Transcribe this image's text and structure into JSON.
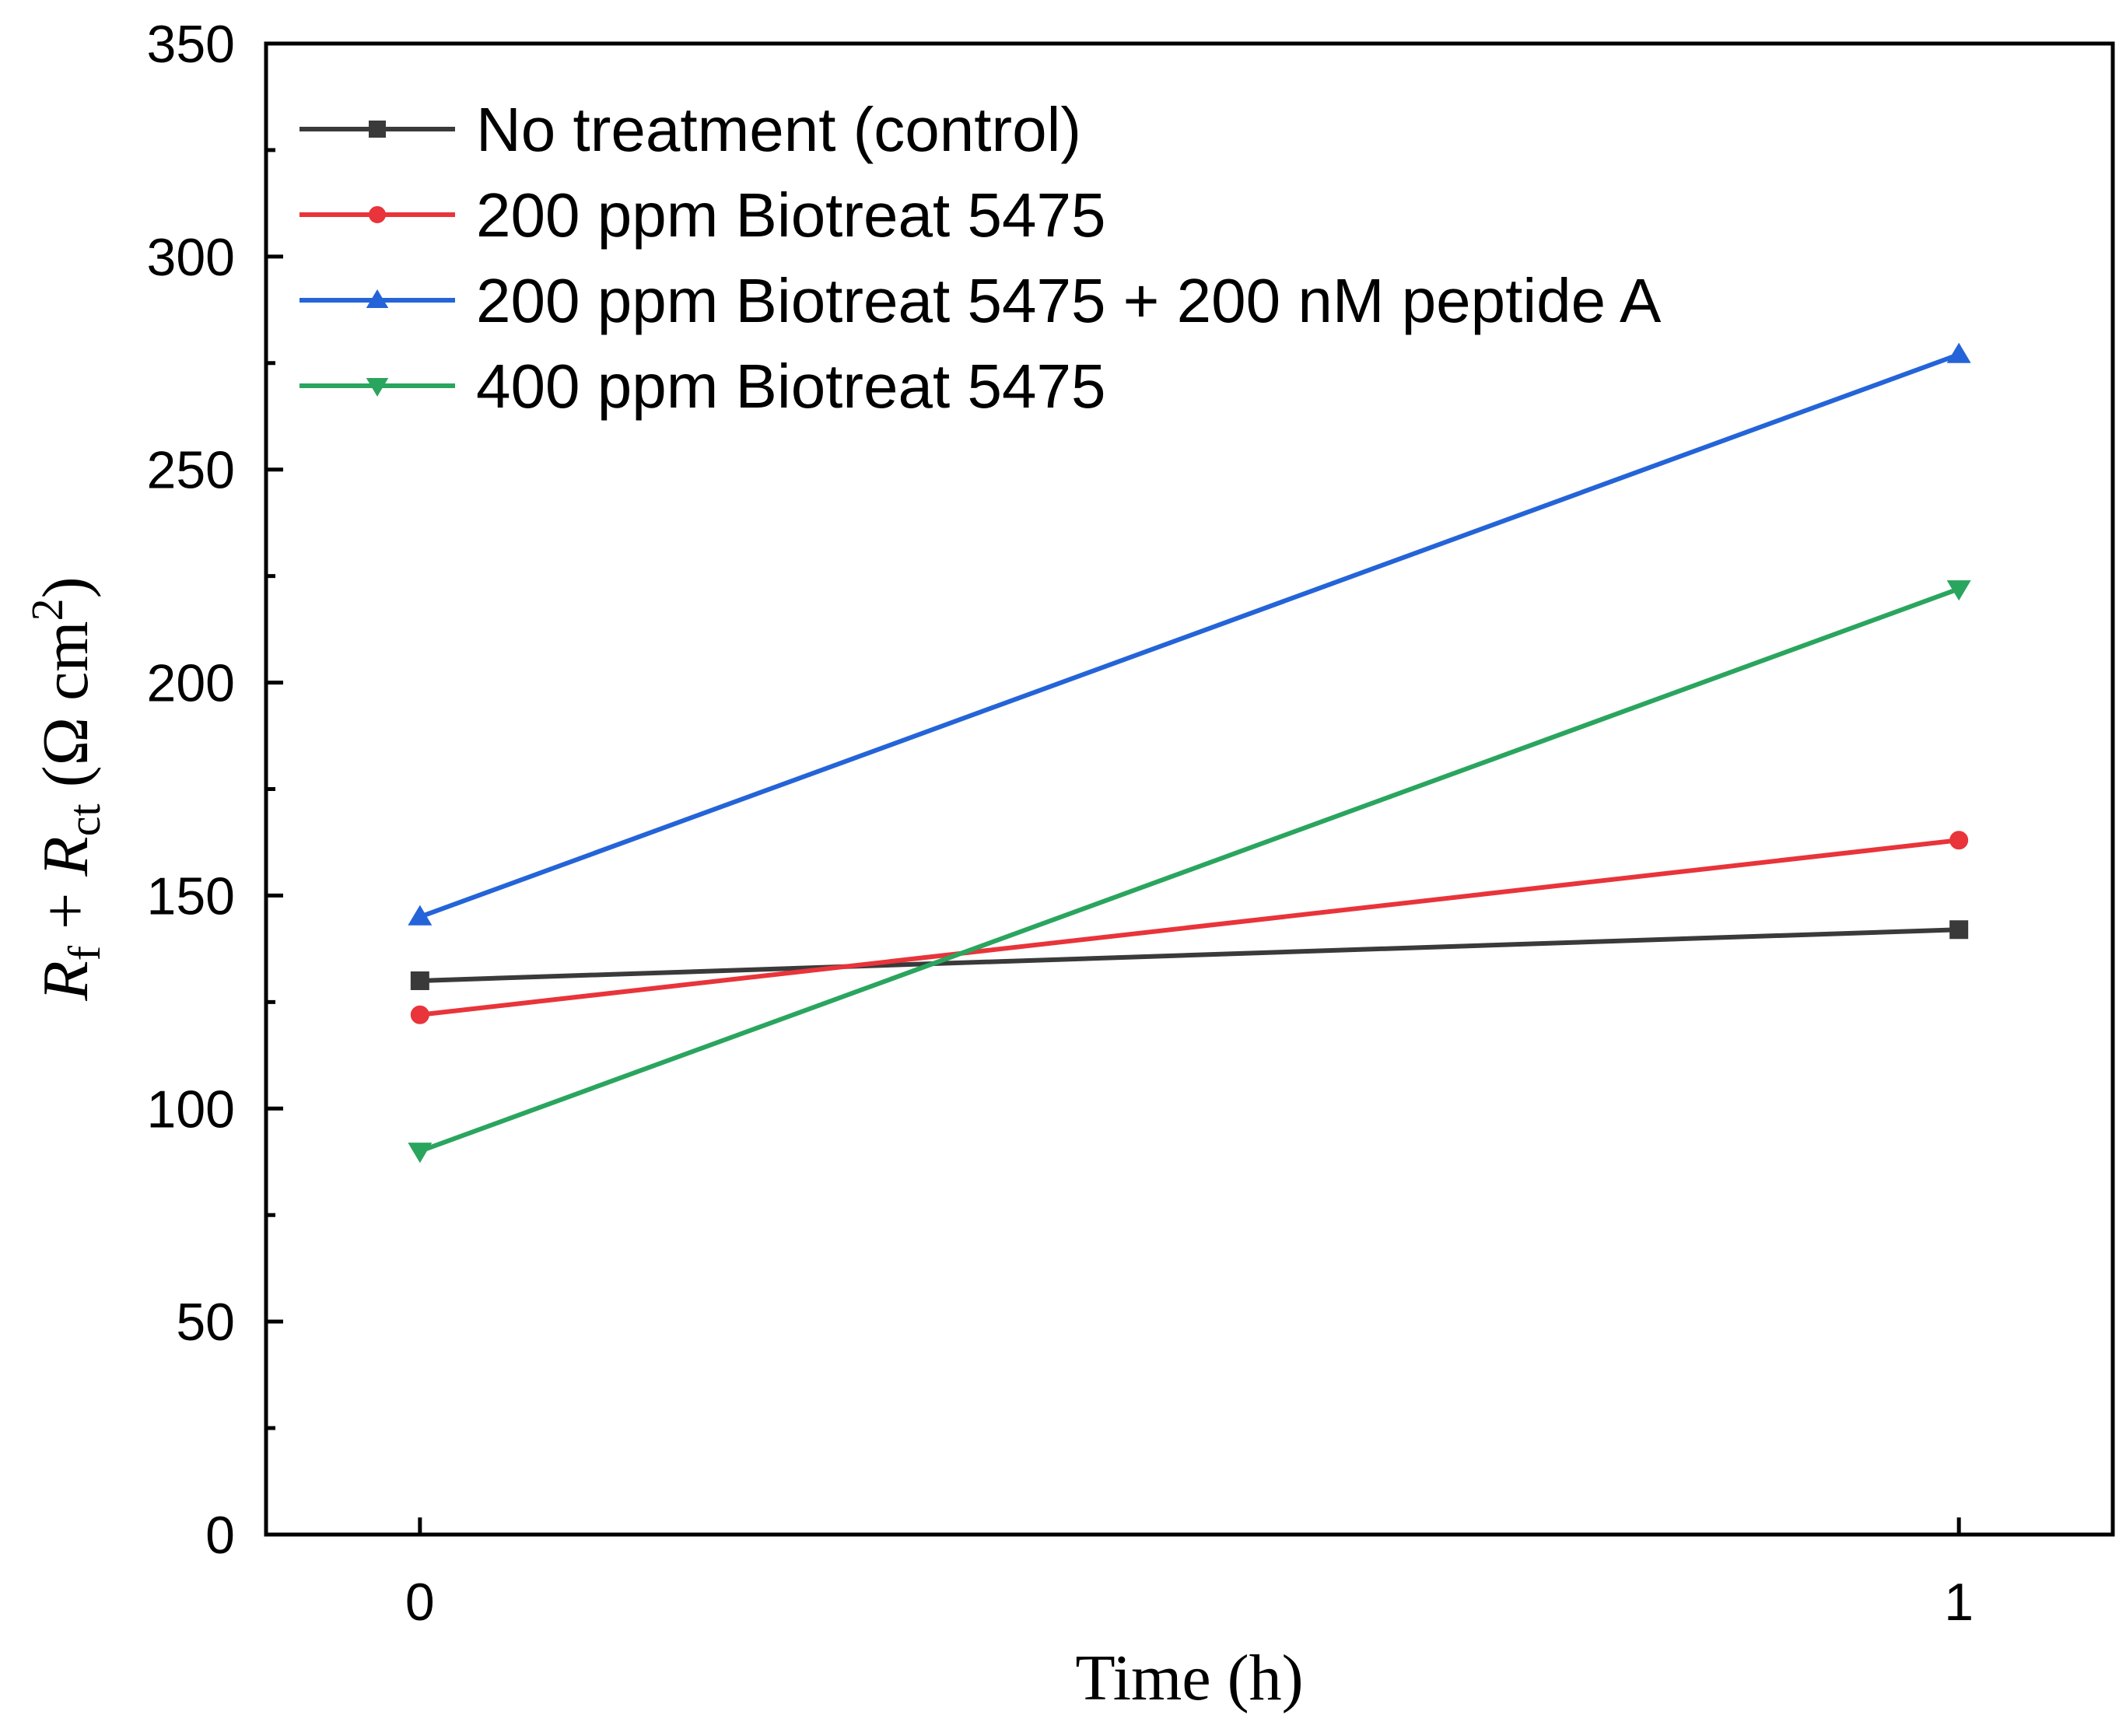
{
  "chart_data": {
    "type": "line",
    "title": "",
    "xlabel": "Time (h)",
    "ylabel": {
      "symbol_1": "R",
      "sub_1": "f",
      "plus": " + ",
      "symbol_2": "R",
      "sub_2": "ct",
      "unit_open": " (Ω cm",
      "unit_sup": "2",
      "unit_close": ")"
    },
    "x": [
      0,
      1
    ],
    "xlim": [
      -0.1,
      1.1
    ],
    "ylim": [
      0,
      350
    ],
    "x_ticks": [
      "0",
      "1"
    ],
    "y_ticks": [
      "0",
      "50",
      "100",
      "150",
      "200",
      "250",
      "300",
      "350"
    ],
    "grid": false,
    "legend_position": "top-left",
    "series": [
      {
        "name": "No treatment (control)",
        "color": "#3a3a3a",
        "marker": "square",
        "values": [
          130,
          142
        ]
      },
      {
        "name": "200 ppm Biotreat 5475",
        "color": "#e8343a",
        "marker": "circle",
        "values": [
          122,
          163
        ]
      },
      {
        "name": "200 ppm Biotreat 5475 + 200 nM peptide A",
        "color": "#2464d8",
        "marker": "triangle-up",
        "values": [
          145,
          277
        ]
      },
      {
        "name": "400 ppm Biotreat 5475",
        "color": "#2aa55e",
        "marker": "triangle-down",
        "values": [
          90,
          222
        ]
      }
    ]
  }
}
